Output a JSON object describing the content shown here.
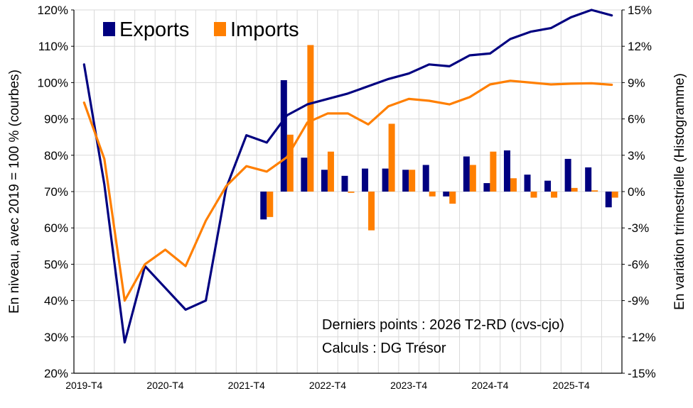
{
  "chart_data": {
    "type": "line",
    "note_lines": [
      "Derniers points : 2026 T2-RD  (cvs-cjo)",
      "Calculs : DG Trésor"
    ],
    "left_axis": {
      "label": "En niveau, avec 2019 = 100 % (courbes)",
      "min": 20,
      "max": 120,
      "step": 10,
      "tick_labels": [
        "20%",
        "30%",
        "40%",
        "50%",
        "60%",
        "70%",
        "80%",
        "90%",
        "100%",
        "110%",
        "120%"
      ]
    },
    "right_axis": {
      "label": "En variation trimestrielle  (Histogramme)",
      "min": -15,
      "max": 15,
      "step": 3,
      "tick_labels": [
        "-15%",
        "-12%",
        "-9%",
        "-6%",
        "-3%",
        "0%",
        "3%",
        "6%",
        "9%",
        "12%",
        "15%"
      ]
    },
    "x_axis": {
      "categories": [
        "2019-T4",
        "2020-T1",
        "2020-T2",
        "2020-T3",
        "2020-T4",
        "2021-T1",
        "2021-T2",
        "2021-T3",
        "2021-T4",
        "2022-T1",
        "2022-T2",
        "2022-T3",
        "2022-T4",
        "2023-T1",
        "2023-T2",
        "2023-T3",
        "2023-T4",
        "2024-T1",
        "2024-T2",
        "2024-T3",
        "2024-T4",
        "2025-T1",
        "2025-T2",
        "2025-T3",
        "2025-T4",
        "2026-T1",
        "2026-T2"
      ],
      "tick_labels": [
        "2019-T4",
        "2020-T4",
        "2021-T4",
        "2022-T4",
        "2023-T4",
        "2024-T4",
        "2025-T4"
      ]
    },
    "legend": {
      "position": "top-left"
    },
    "grid": true,
    "series": [
      {
        "name": "Exports",
        "kind": "line",
        "axis": "left",
        "color": "#000080",
        "values": [
          105,
          72,
          28.5,
          49.5,
          43.5,
          37.5,
          40,
          71,
          85.5,
          83.5,
          91,
          94,
          95.5,
          97,
          99,
          101,
          102.5,
          105,
          104.5,
          107.5,
          108,
          112,
          114,
          115,
          118,
          120,
          118.5
        ]
      },
      {
        "name": "Imports",
        "kind": "line",
        "axis": "left",
        "color": "#ff7f00",
        "values": [
          94.5,
          79,
          40,
          50,
          54,
          49.5,
          62,
          71.5,
          77,
          75.5,
          79.5,
          89,
          91.5,
          91.5,
          88.5,
          93.5,
          95.5,
          95,
          94,
          96,
          99.5,
          100.5,
          100,
          99.5,
          99.7,
          99.8,
          99.4
        ]
      },
      {
        "name": "Exports",
        "kind": "bar",
        "axis": "right",
        "color": "#000080",
        "values": [
          null,
          null,
          null,
          null,
          null,
          null,
          null,
          null,
          null,
          -2.3,
          9.2,
          2.8,
          1.8,
          1.3,
          1.9,
          1.9,
          1.8,
          2.2,
          -0.4,
          2.9,
          0.7,
          3.4,
          1.4,
          0.9,
          2.7,
          2.0,
          -1.3
        ]
      },
      {
        "name": "Imports",
        "kind": "bar",
        "axis": "right",
        "color": "#ff7f00",
        "values": [
          null,
          null,
          null,
          null,
          null,
          null,
          null,
          null,
          null,
          -2.1,
          4.7,
          12.1,
          3.3,
          -0.1,
          -3.2,
          5.6,
          1.8,
          -0.4,
          -1.0,
          2.2,
          3.3,
          1.1,
          -0.5,
          -0.5,
          0.3,
          0.1,
          -0.5
        ]
      }
    ]
  }
}
